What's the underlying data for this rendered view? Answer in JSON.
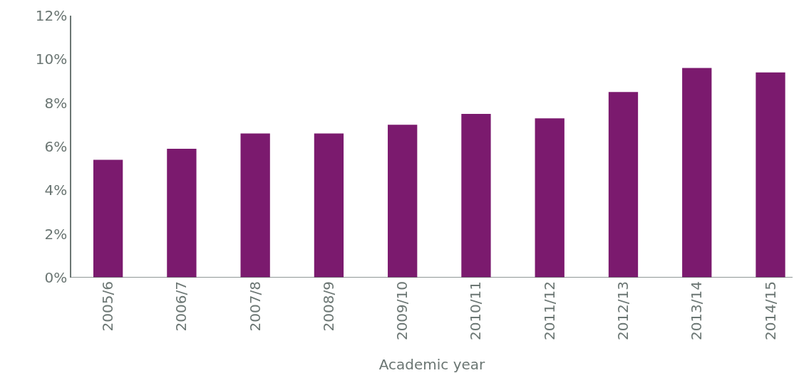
{
  "chart_data": {
    "type": "bar",
    "xlabel": "Academic year",
    "categories": [
      "2005/6",
      "2006/7",
      "2007/8",
      "2008/9",
      "2009/10",
      "2010/11",
      "2011/12",
      "2012/13",
      "2013/14",
      "2014/15"
    ],
    "values": [
      5.4,
      5.9,
      6.6,
      6.6,
      7.0,
      7.5,
      7.3,
      8.5,
      9.6,
      9.4
    ],
    "color": "#7b1a6e",
    "ylim": [
      0,
      12
    ],
    "yticks": [
      {
        "value": 0,
        "label": "0%"
      },
      {
        "value": 2,
        "label": "2%"
      },
      {
        "value": 4,
        "label": "4%"
      },
      {
        "value": 6,
        "label": "6%"
      },
      {
        "value": 8,
        "label": "8%"
      },
      {
        "value": 10,
        "label": "10%"
      },
      {
        "value": 12,
        "label": "12%"
      }
    ],
    "grid": false
  }
}
